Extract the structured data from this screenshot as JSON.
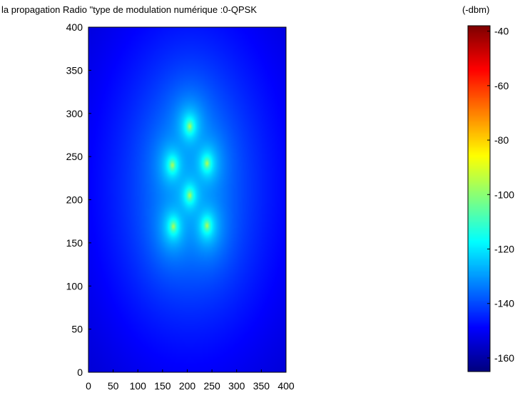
{
  "chart_data": {
    "type": "heatmap",
    "title": "la propagation Radio  \"type de modulation numérique :0-QPSK",
    "xlabel": "",
    "ylabel": "",
    "xlim": [
      0,
      400
    ],
    "ylim": [
      0,
      400
    ],
    "x_ticks": [
      "0",
      "50",
      "100",
      "150",
      "200",
      "250",
      "300",
      "350",
      "400"
    ],
    "y_ticks": [
      "0",
      "50",
      "100",
      "150",
      "200",
      "250",
      "300",
      "350",
      "400"
    ],
    "colorbar": {
      "label": "(-dbm)",
      "range": [
        -165,
        -38
      ],
      "ticks": [
        "-40",
        "-60",
        "-80",
        "-100",
        "-120",
        "-140",
        "-160"
      ],
      "colormap": "jet"
    },
    "sources": [
      {
        "x": 205,
        "y": 285
      },
      {
        "x": 170,
        "y": 240
      },
      {
        "x": 240,
        "y": 242
      },
      {
        "x": 205,
        "y": 205
      },
      {
        "x": 172,
        "y": 169
      },
      {
        "x": 240,
        "y": 170
      }
    ]
  }
}
